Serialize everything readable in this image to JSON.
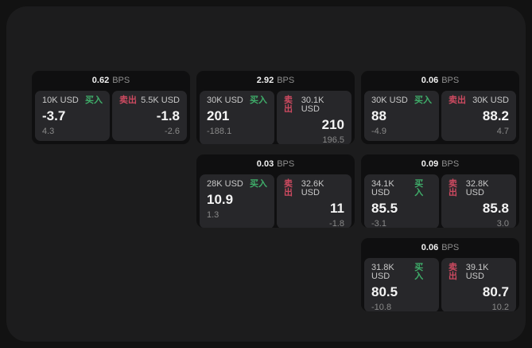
{
  "labels": {
    "bps_unit": "BPS",
    "buy": "买入",
    "sell": "卖出"
  },
  "colors": {
    "outer_background": "#121212",
    "panel_background": "#1c1c1d",
    "card_background": "#0f0f10",
    "tile_background": "#27272a",
    "buy_green": "#3fae6a",
    "sell_red": "#cd4a60"
  },
  "cards": [
    {
      "bps": "0.62",
      "buy": {
        "amount": "10K USD",
        "price": "-3.7",
        "delta": "4.3"
      },
      "sell": {
        "amount": "5.5K USD",
        "price": "-1.8",
        "delta": "-2.6"
      }
    },
    {
      "bps": "2.92",
      "buy": {
        "amount": "30K USD",
        "price": "201",
        "delta": "-188.1"
      },
      "sell": {
        "amount": "30.1K USD",
        "price": "210",
        "delta": "196.5"
      }
    },
    {
      "bps": "0.06",
      "buy": {
        "amount": "30K USD",
        "price": "88",
        "delta": "-4.9"
      },
      "sell": {
        "amount": "30K USD",
        "price": "88.2",
        "delta": "4.7"
      }
    },
    {
      "bps": "0.03",
      "buy": {
        "amount": "28K USD",
        "price": "10.9",
        "delta": "1.3"
      },
      "sell": {
        "amount": "32.6K USD",
        "price": "11",
        "delta": "-1.8"
      }
    },
    {
      "bps": "0.09",
      "buy": {
        "amount": "34.1K USD",
        "price": "85.5",
        "delta": "-3.1"
      },
      "sell": {
        "amount": "32.8K USD",
        "price": "85.8",
        "delta": "3.0"
      }
    },
    {
      "bps": "0.06",
      "buy": {
        "amount": "31.8K USD",
        "price": "80.5",
        "delta": "-10.8"
      },
      "sell": {
        "amount": "39.1K USD",
        "price": "80.7",
        "delta": "10.2"
      }
    }
  ]
}
